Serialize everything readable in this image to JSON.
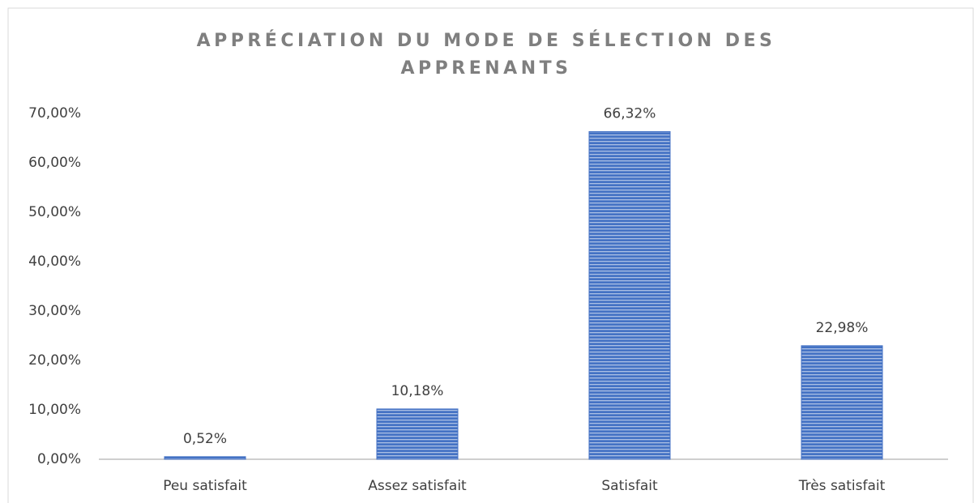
{
  "chart_data": {
    "type": "bar",
    "title": "APPRÉCIATION DU MODE DE SÉLECTION DES APPRENANTS",
    "categories": [
      "Peu satisfait",
      "Assez satisfait",
      "Satisfait",
      "Très satisfait"
    ],
    "values": [
      0.52,
      10.18,
      66.32,
      22.98
    ],
    "value_labels": [
      "0,52%",
      "10,18%",
      "66,32%",
      "22,98%"
    ],
    "color": "#4472c4",
    "ylim": [
      0,
      70
    ],
    "yticks": [
      {
        "value": 0,
        "label": "0,00%"
      },
      {
        "value": 10,
        "label": "10,00%"
      },
      {
        "value": 20,
        "label": "20,00%"
      },
      {
        "value": 30,
        "label": "30,00%"
      },
      {
        "value": 40,
        "label": "40,00%"
      },
      {
        "value": 50,
        "label": "50,00%"
      },
      {
        "value": 60,
        "label": "60,00%"
      },
      {
        "value": 70,
        "label": "70,00%"
      }
    ],
    "grid": false
  }
}
